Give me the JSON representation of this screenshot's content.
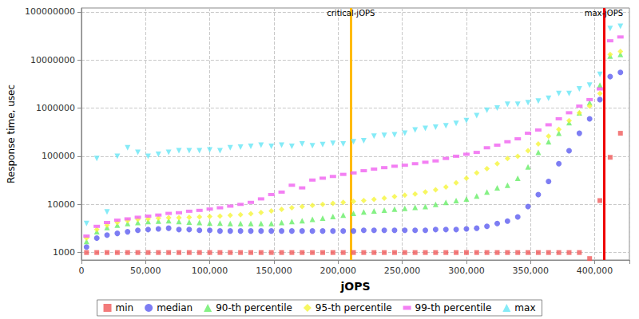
{
  "chart_data": {
    "type": "scatter",
    "x_label": "jOPS",
    "y_label": "Response time, usec",
    "log": "y",
    "grid": true,
    "legend": "bottom",
    "xlim": [
      0,
      427000
    ],
    "xticks": [
      0,
      {
        "value": 50000,
        "label": "50,000"
      },
      {
        "value": 100000,
        "label": "100,000"
      },
      {
        "value": 150000,
        "label": "150,000"
      },
      {
        "value": 200000,
        "label": "200,000"
      },
      {
        "value": 250000,
        "label": "250,000"
      },
      {
        "value": 300000,
        "label": "300,000"
      },
      {
        "value": 350000,
        "label": "350,000"
      },
      {
        "value": 400000,
        "label": "400,000"
      }
    ],
    "ylim": [
      700,
      120000000
    ],
    "yticks": [
      1000,
      10000,
      100000,
      1000000,
      10000000,
      100000000
    ],
    "annotations": [
      {
        "label": "critical-jOPS",
        "x": 210000,
        "color": "#ffbb00"
      },
      {
        "label": "max-jOPS",
        "x": 407000,
        "color": "#ee0000"
      }
    ],
    "x": [
      4000,
      12000,
      20000,
      28000,
      36000,
      44000,
      52000,
      60000,
      68000,
      76000,
      84000,
      92000,
      100000,
      108000,
      116000,
      124000,
      132000,
      140000,
      148000,
      156000,
      164000,
      172000,
      180000,
      188000,
      196000,
      204000,
      212000,
      220000,
      228000,
      236000,
      244000,
      252000,
      260000,
      268000,
      276000,
      284000,
      292000,
      300000,
      308000,
      316000,
      324000,
      332000,
      340000,
      348000,
      356000,
      364000,
      372000,
      380000,
      388000,
      396000,
      404000,
      412000,
      420000
    ],
    "series": [
      {
        "name": "min",
        "color": "#f05a5a",
        "marker": "square",
        "values": [
          1000,
          1000,
          1000,
          1000,
          1000,
          1000,
          1000,
          1000,
          1000,
          1000,
          1000,
          1000,
          1000,
          1000,
          1000,
          1000,
          1000,
          1000,
          1000,
          1000,
          1000,
          1000,
          1000,
          1000,
          1000,
          1000,
          1000,
          1000,
          1000,
          1000,
          1000,
          1000,
          1000,
          1000,
          1000,
          1000,
          1000,
          1000,
          1000,
          1000,
          1000,
          1000,
          1000,
          1000,
          1000,
          1000,
          1000,
          1000,
          1000,
          750,
          12000,
          95000,
          300000
        ]
      },
      {
        "name": "median",
        "color": "#5c5cf0",
        "marker": "circle",
        "values": [
          1300,
          2000,
          2300,
          2500,
          2700,
          2900,
          3000,
          3100,
          3200,
          3000,
          3000,
          2900,
          2900,
          2800,
          2800,
          2800,
          2800,
          2800,
          2800,
          2800,
          2800,
          2800,
          2800,
          2800,
          2800,
          2800,
          2800,
          2900,
          2900,
          2900,
          2900,
          2900,
          2900,
          2900,
          3000,
          3000,
          3000,
          3100,
          3200,
          3500,
          4000,
          4500,
          5500,
          9000,
          16000,
          30000,
          70000,
          130000,
          300000,
          600000,
          1500000,
          4500000,
          5500000
        ]
      },
      {
        "name": "90-th percentile",
        "color": "#66ee66",
        "marker": "triangle",
        "values": [
          1700,
          2700,
          3300,
          3700,
          4000,
          4200,
          4400,
          4500,
          4600,
          4400,
          4300,
          4200,
          4100,
          4100,
          4000,
          4000,
          4000,
          4000,
          4000,
          4200,
          4400,
          4600,
          4900,
          5200,
          5600,
          6000,
          6500,
          7000,
          7300,
          7600,
          8000,
          8300,
          8700,
          9000,
          10000,
          11000,
          12000,
          13000,
          15000,
          18000,
          22000,
          25000,
          35000,
          60000,
          120000,
          200000,
          300000,
          500000,
          800000,
          1300000,
          3000000,
          12000000,
          13000000
        ]
      },
      {
        "name": "95-th percentile",
        "color": "#f5f53a",
        "marker": "diamond",
        "values": [
          2000,
          3000,
          3700,
          4200,
          4600,
          4900,
          5000,
          5200,
          5300,
          5300,
          5400,
          5500,
          5600,
          5700,
          5900,
          6100,
          6400,
          6800,
          7300,
          7900,
          8500,
          9000,
          9500,
          10000,
          10500,
          11000,
          11500,
          12000,
          12700,
          13500,
          14500,
          15500,
          16500,
          18000,
          20000,
          23000,
          28000,
          35000,
          45000,
          55000,
          70000,
          90000,
          100000,
          130000,
          180000,
          260000,
          360000,
          550000,
          800000,
          1100000,
          2000000,
          13000000,
          15000000
        ]
      },
      {
        "name": "99-th percentile",
        "color": "#f060f0",
        "marker": "dash",
        "values": [
          2200,
          3500,
          4200,
          4700,
          5000,
          5400,
          5700,
          6000,
          6500,
          6700,
          7200,
          7500,
          8000,
          8500,
          9200,
          10000,
          11000,
          13000,
          16000,
          18000,
          25000,
          22000,
          32000,
          35000,
          38000,
          42000,
          45000,
          50000,
          54000,
          58000,
          62000,
          65000,
          70000,
          75000,
          80000,
          90000,
          100000,
          110000,
          120000,
          150000,
          170000,
          200000,
          230000,
          300000,
          350000,
          450000,
          600000,
          800000,
          1100000,
          1500000,
          2500000,
          25000000,
          30000000
        ]
      },
      {
        "name": "max",
        "color": "#66e6f5",
        "marker": "triangle-down",
        "values": [
          4000,
          90000,
          7000,
          100000,
          150000,
          120000,
          100000,
          110000,
          120000,
          130000,
          130000,
          130000,
          135000,
          130000,
          150000,
          155000,
          160000,
          170000,
          160000,
          170000,
          160000,
          180000,
          165000,
          175000,
          185000,
          180000,
          200000,
          210000,
          260000,
          270000,
          280000,
          300000,
          350000,
          380000,
          400000,
          430000,
          480000,
          550000,
          700000,
          900000,
          1000000,
          1200000,
          1200000,
          1300000,
          1400000,
          1600000,
          2000000,
          2000000,
          2500000,
          3000000,
          5000000,
          45000000,
          50000000
        ]
      }
    ]
  }
}
